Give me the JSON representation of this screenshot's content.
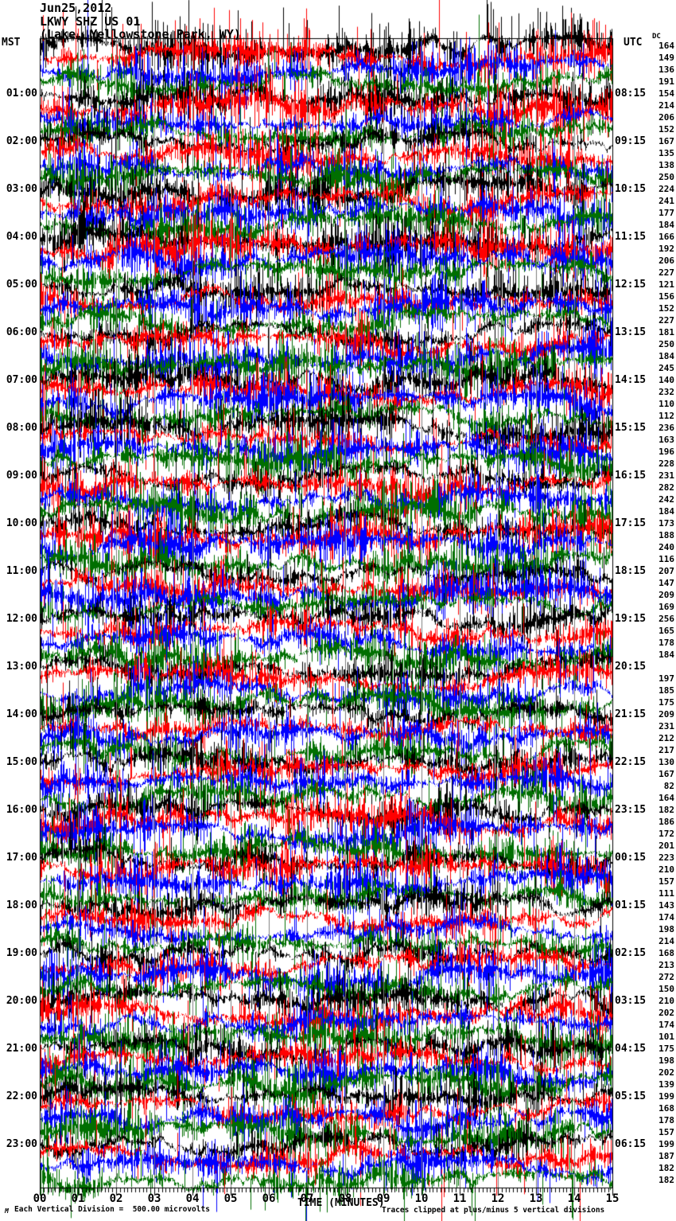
{
  "header": {
    "date": "Jun25,2012",
    "station": "LKWY SHZ US 01",
    "location": "(Lake, Yellowstone Park, WY)",
    "left_tz": "MST",
    "right_tz": "UTC",
    "dc_label": "DC"
  },
  "x_axis": {
    "label": "TIME (MINUTES)"
  },
  "footer": {
    "division_note": "Each Vertical Division =  500.00 microvolts",
    "clip_note": "Traces clipped at plus/minus 5 vertical divisions",
    "watermark": "M"
  },
  "colors": {
    "trace_cycle": [
      "#000000",
      "#ff0000",
      "#0000ff",
      "#006f00"
    ],
    "grid": "#7d7d7d",
    "axis": "#000000"
  },
  "chart_data": {
    "type": "line",
    "title": "Jun25,2012 LKWY SHZ US 01 (Lake, Yellowstone Park, WY)",
    "xlabel": "TIME (MINUTES)",
    "x_range": [
      0,
      15
    ],
    "x_ticks": [
      "00",
      "01",
      "02",
      "03",
      "04",
      "05",
      "06",
      "07",
      "08",
      "09",
      "10",
      "11",
      "12",
      "13",
      "14",
      "15"
    ],
    "grid": true,
    "legend_position": "none",
    "traces_per_hour": 4,
    "minutes_per_trace": 15,
    "total_traces": 96,
    "microvolts_per_division": 500.0,
    "clip_divisions": 5,
    "trace_color_cycle": [
      "black",
      "red",
      "blue",
      "green"
    ],
    "mst_labels": [
      "01:00",
      "02:00",
      "03:00",
      "04:00",
      "05:00",
      "06:00",
      "07:00",
      "08:00",
      "09:00",
      "10:00",
      "11:00",
      "12:00",
      "13:00",
      "14:00",
      "15:00",
      "16:00",
      "17:00",
      "18:00",
      "19:00",
      "20:00",
      "21:00",
      "22:00",
      "23:00"
    ],
    "utc_labels": [
      "08:15",
      "09:15",
      "10:15",
      "11:15",
      "12:15",
      "13:15",
      "14:15",
      "15:15",
      "16:15",
      "17:15",
      "18:15",
      "19:15",
      "20:15",
      "21:15",
      "22:15",
      "23:15",
      "00:15",
      "01:15",
      "02:15",
      "03:15",
      "04:15",
      "05:15",
      "06:15"
    ],
    "dc_offsets": [
      164,
      149,
      136,
      191,
      154,
      214,
      206,
      152,
      167,
      135,
      138,
      250,
      224,
      241,
      177,
      184,
      166,
      192,
      206,
      227,
      121,
      156,
      152,
      227,
      181,
      250,
      184,
      245,
      140,
      232,
      110,
      112,
      236,
      163,
      196,
      228,
      231,
      282,
      242,
      184,
      173,
      188,
      240,
      116,
      207,
      147,
      209,
      169,
      256,
      165,
      178,
      184,
      null,
      197,
      185,
      175,
      209,
      231,
      212,
      217,
      130,
      167,
      82,
      164,
      182,
      186,
      172,
      201,
      223,
      210,
      157,
      111,
      143,
      174,
      198,
      214,
      168,
      213,
      272,
      150,
      210,
      202,
      174,
      101,
      175,
      198,
      202,
      139,
      199,
      168,
      178,
      157,
      199,
      187,
      182,
      182
    ],
    "waveform_note": "Continuous high-amplitude seismic noise filling each 15-minute trace; exact sample values not recoverable from raster, traces clipped at plus/minus 5 vertical divisions"
  }
}
